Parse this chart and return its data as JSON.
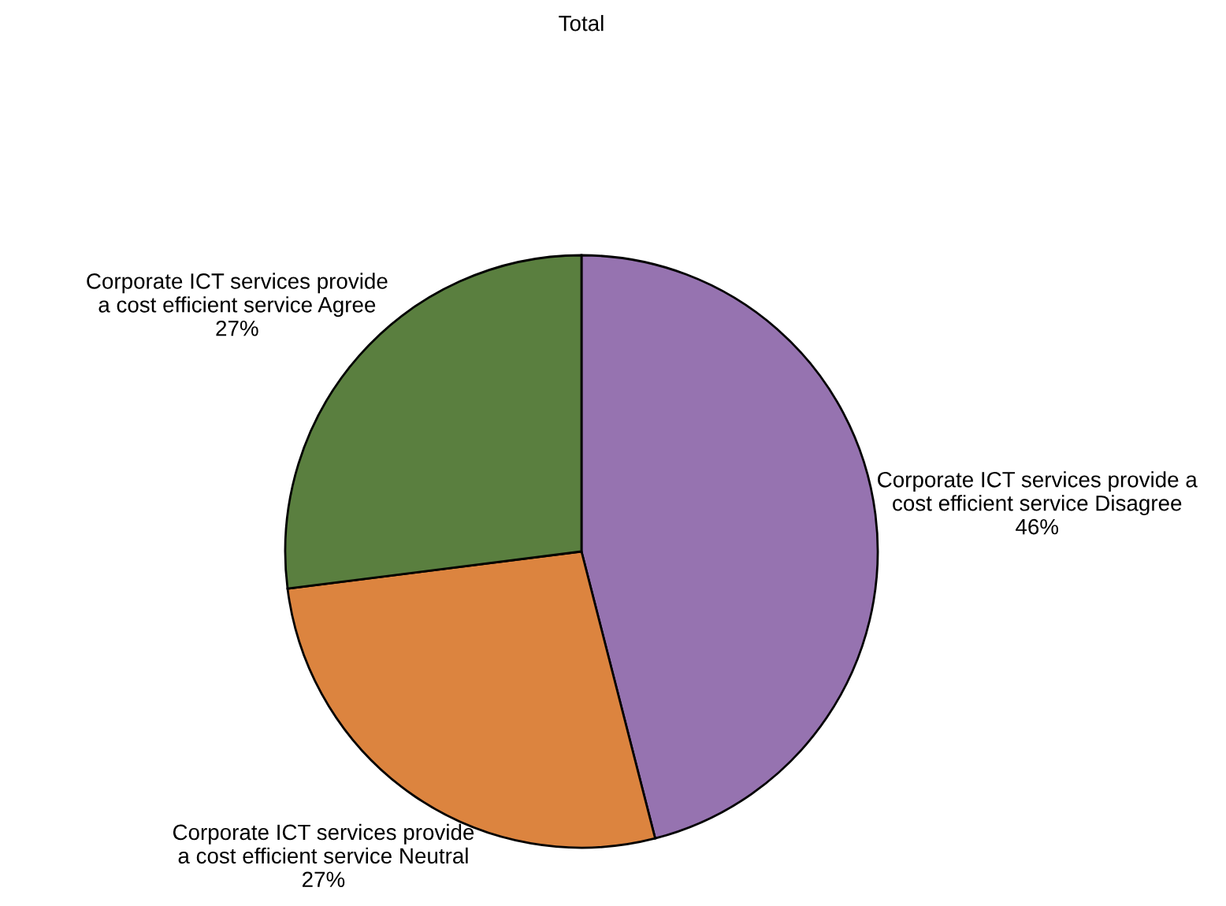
{
  "chart_data": {
    "type": "pie",
    "title": "Total",
    "categories": [
      "Corporate ICT services provide a cost efficient service Disagree",
      "Corporate ICT services provide a cost efficient service Neutral",
      "Corporate ICT services provide a cost efficient service Agree"
    ],
    "values": [
      46,
      27,
      27
    ],
    "value_labels": [
      "46%",
      "27%",
      "27%"
    ],
    "colors": [
      "#9673b0",
      "#dc843f",
      "#5a7f3f"
    ],
    "legend": false
  }
}
